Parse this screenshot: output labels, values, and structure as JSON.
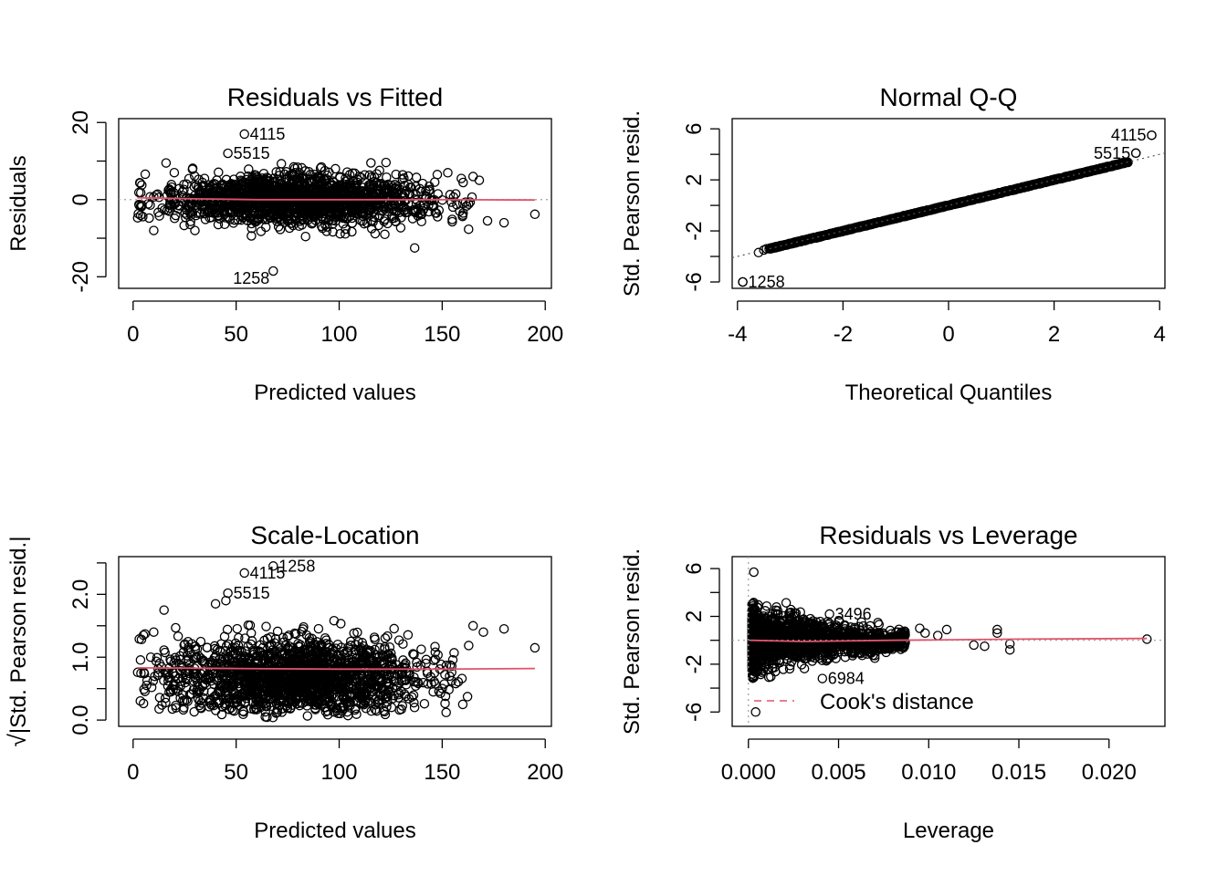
{
  "colors": {
    "axis": "#000000",
    "smooth": "#DF536B",
    "reference": "#9E9E9E",
    "points": "#000000"
  },
  "chart_data": [
    {
      "type": "scatter",
      "title": "Residuals vs Fitted",
      "xlabel": "Predicted values",
      "ylabel": "Residuals",
      "xlim": [
        -7,
        203
      ],
      "ylim": [
        -23,
        21
      ],
      "xticks": [
        0,
        50,
        100,
        150,
        200
      ],
      "yticks": [
        -20,
        -10,
        0,
        10,
        20
      ],
      "ytick_labels": [
        "-20",
        "",
        "0",
        "",
        "20"
      ],
      "x_center": 80,
      "x_spread": 32,
      "y_spread": 3.2,
      "n_points": 1700,
      "outliers": [
        [
          180,
          -6
        ],
        [
          195,
          -3.8
        ],
        [
          172,
          -5.5
        ],
        [
          165,
          6
        ],
        [
          168,
          5
        ],
        [
          160,
          -4
        ],
        [
          10,
          -8
        ],
        [
          16,
          9.5
        ],
        [
          30,
          -8
        ],
        [
          20,
          7
        ]
      ],
      "labeled_points": [
        {
          "label": "4115",
          "x": 54,
          "y": 17
        },
        {
          "label": "5515",
          "x": 46,
          "y": 12
        },
        {
          "label": "1258",
          "x": 68,
          "y": -18.5
        }
      ],
      "smooth": [
        [
          2,
          0.5
        ],
        [
          30,
          0.2
        ],
        [
          60,
          0
        ],
        [
          100,
          0
        ],
        [
          150,
          0
        ],
        [
          195,
          -0.1
        ]
      ],
      "reference_y": 0,
      "grid": false
    },
    {
      "type": "scatter",
      "title": "Normal Q-Q",
      "xlabel": "Theoretical Quantiles",
      "ylabel": "Std. Pearson resid.",
      "xlim": [
        -4.1,
        4.1
      ],
      "ylim": [
        -6.5,
        6.8
      ],
      "xticks": [
        -4,
        -2,
        0,
        2,
        4
      ],
      "yticks": [
        -6,
        -4,
        -2,
        0,
        2,
        4,
        6
      ],
      "ytick_labels": [
        "-6",
        "",
        "-2",
        "",
        "2",
        "",
        "6"
      ],
      "qq_line": {
        "slope": 1.0,
        "intercept": 0.0
      },
      "qq_range": [
        -3.4,
        3.4
      ],
      "extremes": [
        [
          -3.9,
          -6
        ],
        [
          -3.6,
          -3.7
        ],
        [
          -3.5,
          -3.5
        ],
        [
          -3.45,
          -3.4
        ],
        [
          3.55,
          4.1
        ],
        [
          3.85,
          5.5
        ]
      ],
      "labeled_points": [
        {
          "label": "4115",
          "x": 3.85,
          "y": 5.5
        },
        {
          "label": "5515",
          "x": 3.55,
          "y": 4.1
        },
        {
          "label": "1258",
          "x": -3.9,
          "y": -6
        }
      ],
      "grid": false
    },
    {
      "type": "scatter",
      "title": "Scale-Location",
      "xlabel": "Predicted values",
      "ylabel": "√|Std. Pearson resid.|",
      "ylabel_radical": "√",
      "ylabel_text": "|Std. Pearson resid.|",
      "xlim": [
        -7,
        203
      ],
      "ylim": [
        -0.1,
        2.6
      ],
      "xticks": [
        0,
        50,
        100,
        150,
        200
      ],
      "yticks": [
        0.0,
        0.5,
        1.0,
        1.5,
        2.0,
        2.5
      ],
      "ytick_labels": [
        "0.0",
        "",
        "1.0",
        "",
        "2.0",
        ""
      ],
      "x_center": 80,
      "x_spread": 32,
      "n_points": 1700,
      "outliers": [
        [
          180,
          1.45
        ],
        [
          195,
          1.15
        ],
        [
          165,
          1.5
        ],
        [
          170,
          1.4
        ],
        [
          160,
          0.25
        ],
        [
          5,
          1.35
        ],
        [
          10,
          1.4
        ],
        [
          15,
          1.75
        ],
        [
          45,
          1.9
        ],
        [
          40,
          1.85
        ]
      ],
      "labeled_points": [
        {
          "label": "1258",
          "x": 68,
          "y": 2.45
        },
        {
          "label": "4115",
          "x": 54,
          "y": 2.34
        },
        {
          "label": "5515",
          "x": 46,
          "y": 2.02
        }
      ],
      "smooth": [
        [
          2,
          0.83
        ],
        [
          50,
          0.82
        ],
        [
          100,
          0.81
        ],
        [
          150,
          0.81
        ],
        [
          195,
          0.82
        ]
      ],
      "grid": false
    },
    {
      "type": "scatter",
      "title": "Residuals vs Leverage",
      "xlabel": "Leverage",
      "ylabel": "Std. Pearson resid.",
      "xlim": [
        -0.0009,
        0.0231
      ],
      "ylim": [
        -7.2,
        7
      ],
      "xticks": [
        0.0,
        0.005,
        0.01,
        0.015,
        0.02
      ],
      "xtick_labels": [
        "0.000",
        "0.005",
        "0.010",
        "0.015",
        "0.020"
      ],
      "yticks": [
        -6,
        -4,
        -2,
        0,
        2,
        4,
        6
      ],
      "ytick_labels": [
        "-6",
        "",
        "-2",
        "",
        "2",
        "",
        "6"
      ],
      "n_points": 1600,
      "outliers": [
        [
          0.0003,
          5.7
        ],
        [
          0.0004,
          -6
        ],
        [
          0.0221,
          0.1
        ],
        [
          0.0145,
          -0.3
        ],
        [
          0.0145,
          -0.8
        ],
        [
          0.0138,
          0.9
        ],
        [
          0.0138,
          0.6
        ],
        [
          0.0131,
          -0.5
        ],
        [
          0.0125,
          -0.4
        ],
        [
          0.011,
          0.9
        ],
        [
          0.0105,
          0.4
        ],
        [
          0.0098,
          0.6
        ],
        [
          0.0095,
          1.0
        ]
      ],
      "labeled_points": [
        {
          "label": "3496",
          "x": 0.0045,
          "y": 2.2
        },
        {
          "label": "6984",
          "x": 0.0041,
          "y": -3.2
        }
      ],
      "smooth": [
        [
          0.0001,
          0
        ],
        [
          0.003,
          -0.1
        ],
        [
          0.008,
          0
        ],
        [
          0.015,
          0.1
        ],
        [
          0.0221,
          0.15
        ]
      ],
      "reference_y": 0,
      "reference_x": 0,
      "legend": {
        "label": "Cook's distance",
        "position": "bottom-left"
      },
      "grid": false
    }
  ]
}
